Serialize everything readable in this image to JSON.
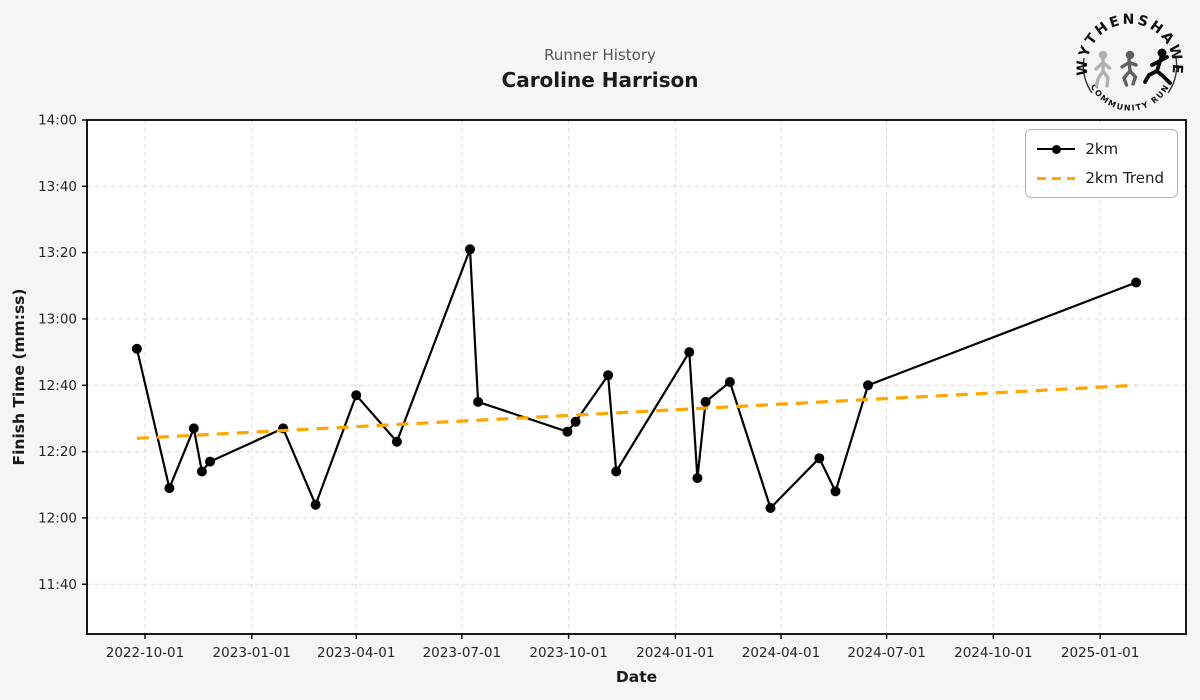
{
  "header": {
    "title": "Runner History",
    "subtitle": "Caroline Harrison"
  },
  "logo": {
    "top_text": "WYTHENSHAWE",
    "bottom_text": "COMMUNITY RUN"
  },
  "colors": {
    "background": "#f5f5f5",
    "plot_background": "#ffffff",
    "series_line": "#000000",
    "trend_line": "#FFA500",
    "grid": "#d9d9d9",
    "spine": "#000000",
    "title_gray": "#555555",
    "text": "#1a1a1a"
  },
  "chart_data": {
    "type": "line",
    "title": "Runner History",
    "subtitle": "Caroline Harrison",
    "xlabel": "Date",
    "ylabel": "Finish Time (mm:ss)",
    "grid": true,
    "legend_position": "upper right",
    "xlim": [
      "2022-08-12",
      "2025-03-16"
    ],
    "ylim_seconds": [
      685,
      840
    ],
    "x_ticks": [
      "2022-10-01",
      "2023-01-01",
      "2023-04-01",
      "2023-07-01",
      "2023-10-01",
      "2024-01-01",
      "2024-04-01",
      "2024-07-01",
      "2024-10-01",
      "2025-01-01"
    ],
    "y_ticks": [
      {
        "seconds": 700,
        "label": "11:40"
      },
      {
        "seconds": 720,
        "label": "12:00"
      },
      {
        "seconds": 740,
        "label": "12:20"
      },
      {
        "seconds": 760,
        "label": "12:40"
      },
      {
        "seconds": 780,
        "label": "13:00"
      },
      {
        "seconds": 800,
        "label": "13:20"
      },
      {
        "seconds": 820,
        "label": "13:40"
      },
      {
        "seconds": 840,
        "label": "14:00"
      }
    ],
    "series": [
      {
        "name": "2km",
        "color": "#000000",
        "style": "solid-marker",
        "points": [
          {
            "date": "2022-09-24",
            "time": "12:51",
            "seconds": 771
          },
          {
            "date": "2022-10-22",
            "time": "12:09",
            "seconds": 729
          },
          {
            "date": "2022-11-12",
            "time": "12:27",
            "seconds": 747
          },
          {
            "date": "2022-11-19",
            "time": "12:14",
            "seconds": 734
          },
          {
            "date": "2022-11-26",
            "time": "12:17",
            "seconds": 737
          },
          {
            "date": "2023-01-28",
            "time": "12:27",
            "seconds": 747
          },
          {
            "date": "2023-02-25",
            "time": "12:04",
            "seconds": 724
          },
          {
            "date": "2023-04-01",
            "time": "12:37",
            "seconds": 757
          },
          {
            "date": "2023-05-06",
            "time": "12:23",
            "seconds": 743
          },
          {
            "date": "2023-07-08",
            "time": "13:21",
            "seconds": 801
          },
          {
            "date": "2023-07-15",
            "time": "12:35",
            "seconds": 755
          },
          {
            "date": "2023-09-30",
            "time": "12:26",
            "seconds": 746
          },
          {
            "date": "2023-10-07",
            "time": "12:29",
            "seconds": 749
          },
          {
            "date": "2023-11-04",
            "time": "12:43",
            "seconds": 763
          },
          {
            "date": "2023-11-11",
            "time": "12:14",
            "seconds": 734
          },
          {
            "date": "2024-01-13",
            "time": "12:50",
            "seconds": 770
          },
          {
            "date": "2024-01-20",
            "time": "12:12",
            "seconds": 732
          },
          {
            "date": "2024-01-27",
            "time": "12:35",
            "seconds": 755
          },
          {
            "date": "2024-02-17",
            "time": "12:41",
            "seconds": 761
          },
          {
            "date": "2024-03-23",
            "time": "12:03",
            "seconds": 723
          },
          {
            "date": "2024-05-04",
            "time": "12:18",
            "seconds": 738
          },
          {
            "date": "2024-05-18",
            "time": "12:08",
            "seconds": 728
          },
          {
            "date": "2024-06-15",
            "time": "12:40",
            "seconds": 760
          },
          {
            "date": "2025-02-01",
            "time": "13:11",
            "seconds": 791
          }
        ]
      },
      {
        "name": "2km Trend",
        "color": "#FFA500",
        "style": "dashed",
        "points": [
          {
            "date": "2022-09-24",
            "time": "12:24",
            "seconds": 744
          },
          {
            "date": "2025-02-01",
            "time": "12:40",
            "seconds": 760
          }
        ]
      }
    ]
  }
}
